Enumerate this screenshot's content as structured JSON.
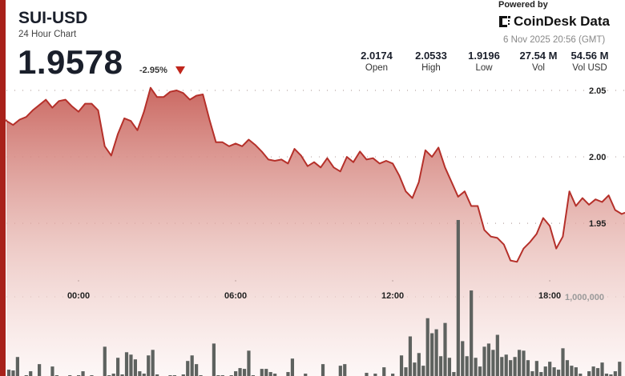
{
  "header": {
    "symbol": "SUI-USD",
    "subtitle": "24 Hour Chart",
    "price": "1.9578",
    "change": "-2.95%",
    "change_direction": "down",
    "powered_by": "Powered by",
    "brand": "CoinDesk Data",
    "timestamp": "6 Nov 2025 20:56 (GMT)"
  },
  "stats": [
    {
      "value": "2.0174",
      "label": "Open"
    },
    {
      "value": "2.0533",
      "label": "High"
    },
    {
      "value": "1.9196",
      "label": "Low"
    },
    {
      "value": "27.54 M",
      "label": "Vol"
    },
    {
      "value": "54.56 M",
      "label": "Vol USD"
    }
  ],
  "colors": {
    "accent": "#a8211a",
    "line": "#b5302a",
    "fill": "#c8615a",
    "volume": "#5e625f",
    "down": "#c0261c"
  },
  "chart_data": {
    "type": "line",
    "title": "",
    "xlabel": "",
    "ylabel": "",
    "x_ticks": [
      "00:00",
      "06:00",
      "12:00",
      "18:00"
    ],
    "y_ticks": [
      "2.05",
      "2.00",
      "1.95"
    ],
    "y_tick_values": [
      2.05,
      2.0,
      1.95
    ],
    "volume_tick": "1,000,000",
    "volume_tick_value": 1000000,
    "grid": true,
    "price": {
      "start": "21:00",
      "interval_minutes": 15,
      "values": [
        2.028,
        2.027,
        2.024,
        2.028,
        2.03,
        2.035,
        2.039,
        2.043,
        2.037,
        2.042,
        2.043,
        2.038,
        2.034,
        2.04,
        2.04,
        2.035,
        2.008,
        2.001,
        2.017,
        2.029,
        2.027,
        2.02,
        2.034,
        2.052,
        2.045,
        2.045,
        2.049,
        2.05,
        2.048,
        2.043,
        2.046,
        2.047,
        2.028,
        2.011,
        2.011,
        2.008,
        2.01,
        2.008,
        2.013,
        2.009,
        2.004,
        1.998,
        1.997,
        1.998,
        1.995,
        2.006,
        2.001,
        1.993,
        1.996,
        1.992,
        1.999,
        1.992,
        1.989,
        2.0,
        1.996,
        2.004,
        1.998,
        1.999,
        1.995,
        1.997,
        1.995,
        1.986,
        1.974,
        1.969,
        1.981,
        2.005,
        2.0,
        2.007,
        1.992,
        1.981,
        1.97,
        1.974,
        1.963,
        1.963,
        1.945,
        1.94,
        1.939,
        1.934,
        1.922,
        1.921,
        1.931,
        1.936,
        1.942,
        1.954,
        1.948,
        1.931,
        1.94,
        1.974,
        1.963,
        1.969,
        1.964,
        1.968,
        1.966,
        1.971,
        1.96,
        1.957,
        1.958
      ]
    },
    "volume": {
      "start": "21:00",
      "interval_minutes": 10,
      "values": [
        0,
        0,
        80000,
        70000,
        240000,
        0,
        10000,
        60000,
        0,
        150000,
        0,
        0,
        120000,
        10000,
        0,
        0,
        10000,
        0,
        10000,
        60000,
        0,
        10000,
        0,
        0,
        370000,
        10000,
        30000,
        230000,
        20000,
        300000,
        270000,
        210000,
        60000,
        30000,
        260000,
        330000,
        20000,
        0,
        0,
        10000,
        10000,
        0,
        20000,
        190000,
        260000,
        150000,
        10000,
        0,
        0,
        410000,
        10000,
        10000,
        0,
        10000,
        60000,
        100000,
        90000,
        320000,
        10000,
        0,
        90000,
        90000,
        50000,
        30000,
        0,
        0,
        50000,
        220000,
        0,
        0,
        30000,
        0,
        0,
        0,
        150000,
        0,
        0,
        0,
        130000,
        150000,
        0,
        0,
        0,
        0,
        40000,
        0,
        30000,
        0,
        110000,
        0,
        30000,
        0,
        260000,
        110000,
        500000,
        170000,
        290000,
        130000,
        730000,
        540000,
        590000,
        250000,
        670000,
        230000,
        50000,
        1970000,
        440000,
        250000,
        1080000,
        230000,
        120000,
        370000,
        410000,
        330000,
        520000,
        240000,
        270000,
        200000,
        240000,
        330000,
        320000,
        200000,
        60000,
        190000,
        50000,
        120000,
        180000,
        110000,
        80000,
        350000,
        200000,
        130000,
        110000,
        30000,
        0,
        60000,
        120000,
        100000,
        170000,
        30000,
        20000,
        60000,
        180000,
        0
      ]
    }
  }
}
